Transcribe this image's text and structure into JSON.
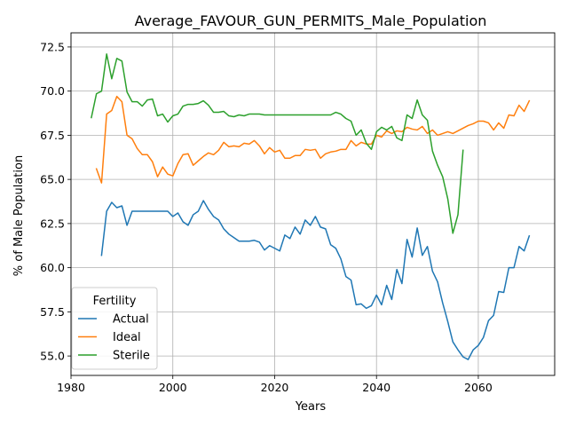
{
  "chart_data": {
    "type": "line",
    "title": "Average_FAVOUR_GUN_PERMITS_Male_Population",
    "xlabel": "Years",
    "ylabel": "% of Male Population",
    "xlim": [
      1980,
      2075
    ],
    "ylim": [
      53.9,
      73.3
    ],
    "xticks": [
      1980,
      2000,
      2020,
      2040,
      2060
    ],
    "xtick_labels": [
      "1980",
      "2000",
      "2020",
      "2040",
      "2060"
    ],
    "yticks": [
      55.0,
      57.5,
      60.0,
      62.5,
      65.0,
      67.5,
      70.0,
      72.5
    ],
    "ytick_labels": [
      "55.0",
      "57.5",
      "60.0",
      "62.5",
      "65.0",
      "67.5",
      "70.0",
      "72.5"
    ],
    "grid": true,
    "legend": {
      "title": "Fertility",
      "position": "lower-left"
    },
    "series": [
      {
        "name": "Actual",
        "color": "#1f77b4",
        "x": [
          1986,
          1987,
          1988,
          1989,
          1990,
          1991,
          1992,
          1993,
          1994,
          1995,
          1996,
          1997,
          1998,
          1999,
          2000,
          2001,
          2002,
          2003,
          2004,
          2005,
          2006,
          2007,
          2008,
          2009,
          2010,
          2011,
          2012,
          2013,
          2014,
          2015,
          2016,
          2017,
          2018,
          2019,
          2020,
          2021,
          2022,
          2023,
          2024,
          2025,
          2026,
          2027,
          2028,
          2029,
          2030,
          2031,
          2032,
          2033,
          2034,
          2035,
          2036,
          2037,
          2038,
          2039,
          2040,
          2041,
          2042,
          2043,
          2044,
          2045,
          2046,
          2047,
          2048,
          2049,
          2050,
          2051,
          2052,
          2053,
          2054,
          2055,
          2056,
          2057,
          2058,
          2059,
          2060,
          2061,
          2062,
          2063,
          2064,
          2065,
          2066,
          2067,
          2068,
          2069,
          2070
        ],
        "y": [
          60.7,
          63.2,
          63.7,
          63.4,
          63.5,
          62.4,
          63.2,
          63.2,
          63.2,
          63.2,
          63.2,
          63.2,
          63.2,
          63.2,
          62.9,
          63.1,
          62.6,
          62.4,
          63.0,
          63.2,
          63.8,
          63.3,
          62.9,
          62.7,
          62.2,
          61.9,
          61.7,
          61.5,
          61.5,
          61.5,
          61.55,
          61.45,
          61.0,
          61.25,
          61.1,
          60.95,
          61.85,
          61.65,
          62.3,
          61.9,
          62.7,
          62.4,
          62.9,
          62.3,
          62.2,
          61.3,
          61.1,
          60.5,
          59.5,
          59.3,
          57.9,
          57.95,
          57.7,
          57.85,
          58.45,
          57.9,
          59.0,
          58.2,
          59.9,
          59.1,
          61.6,
          60.6,
          62.25,
          60.7,
          61.2,
          59.8,
          59.2,
          58.0,
          56.95,
          55.8,
          55.35,
          54.95,
          54.8,
          55.35,
          55.6,
          56.05,
          57.0,
          57.3,
          58.65,
          58.6,
          60.0,
          60.0,
          61.2,
          60.95,
          61.8
        ]
      },
      {
        "name": "Ideal",
        "color": "#ff7f0e",
        "x": [
          1985,
          1986,
          1987,
          1988,
          1989,
          1990,
          1991,
          1992,
          1993,
          1994,
          1995,
          1996,
          1997,
          1998,
          1999,
          2000,
          2001,
          2002,
          2003,
          2004,
          2005,
          2006,
          2007,
          2008,
          2009,
          2010,
          2011,
          2012,
          2013,
          2014,
          2015,
          2016,
          2017,
          2018,
          2019,
          2020,
          2021,
          2022,
          2023,
          2024,
          2025,
          2026,
          2027,
          2028,
          2029,
          2030,
          2031,
          2032,
          2033,
          2034,
          2035,
          2036,
          2037,
          2038,
          2039,
          2040,
          2041,
          2042,
          2043,
          2044,
          2045,
          2046,
          2047,
          2048,
          2049,
          2050,
          2051,
          2052,
          2053,
          2054,
          2055,
          2056,
          2057,
          2058,
          2059,
          2060,
          2061,
          2062,
          2063,
          2064,
          2065,
          2066,
          2067,
          2068,
          2069,
          2070
        ],
        "y": [
          65.6,
          64.8,
          68.7,
          68.9,
          69.7,
          69.4,
          67.5,
          67.3,
          66.75,
          66.4,
          66.4,
          66.0,
          65.15,
          65.7,
          65.3,
          65.2,
          65.9,
          66.4,
          66.45,
          65.8,
          66.05,
          66.3,
          66.5,
          66.4,
          66.65,
          67.1,
          66.85,
          66.9,
          66.85,
          67.05,
          67.0,
          67.2,
          66.9,
          66.45,
          66.8,
          66.55,
          66.65,
          66.2,
          66.2,
          66.35,
          66.35,
          66.7,
          66.65,
          66.7,
          66.2,
          66.45,
          66.55,
          66.6,
          66.7,
          66.7,
          67.2,
          66.9,
          67.1,
          67.0,
          67.0,
          67.5,
          67.4,
          67.75,
          67.6,
          67.75,
          67.7,
          67.95,
          67.85,
          67.8,
          68.0,
          67.6,
          67.8,
          67.5,
          67.6,
          67.7,
          67.6,
          67.75,
          67.9,
          68.05,
          68.15,
          68.3,
          68.3,
          68.2,
          67.8,
          68.2,
          67.9,
          68.65,
          68.6,
          69.2,
          68.85,
          69.45
        ]
      },
      {
        "name": "Sterile",
        "color": "#2ca02c",
        "x": [
          1984,
          1985,
          1986,
          1987,
          1988,
          1989,
          1990,
          1991,
          1992,
          1993,
          1994,
          1995,
          1996,
          1997,
          1998,
          1999,
          2000,
          2001,
          2002,
          2003,
          2004,
          2005,
          2006,
          2007,
          2008,
          2009,
          2010,
          2011,
          2012,
          2013,
          2014,
          2015,
          2016,
          2017,
          2018,
          2019,
          2020,
          2021,
          2022,
          2023,
          2024,
          2025,
          2026,
          2027,
          2028,
          2029,
          2030,
          2031,
          2032,
          2033,
          2034,
          2035,
          2036,
          2037,
          2038,
          2039,
          2040,
          2041,
          2042,
          2043,
          2044,
          2045,
          2046,
          2047,
          2048,
          2049,
          2050,
          2051,
          2052,
          2053,
          2054,
          2055,
          2056,
          2057
        ],
        "y": [
          68.5,
          69.85,
          70.0,
          72.1,
          70.7,
          71.85,
          71.7,
          69.95,
          69.4,
          69.4,
          69.15,
          69.5,
          69.55,
          68.6,
          68.7,
          68.25,
          68.6,
          68.7,
          69.15,
          69.25,
          69.25,
          69.3,
          69.45,
          69.2,
          68.8,
          68.8,
          68.85,
          68.6,
          68.55,
          68.65,
          68.6,
          68.7,
          68.7,
          68.7,
          68.65,
          68.65,
          68.65,
          68.65,
          68.65,
          68.65,
          68.65,
          68.65,
          68.65,
          68.65,
          68.65,
          68.65,
          68.65,
          68.65,
          68.8,
          68.7,
          68.45,
          68.3,
          67.5,
          67.8,
          67.05,
          66.7,
          67.7,
          67.95,
          67.8,
          68.0,
          67.35,
          67.2,
          68.65,
          68.45,
          69.5,
          68.65,
          68.35,
          66.6,
          65.8,
          65.15,
          63.9,
          61.95,
          63.0,
          66.65
        ]
      }
    ]
  }
}
